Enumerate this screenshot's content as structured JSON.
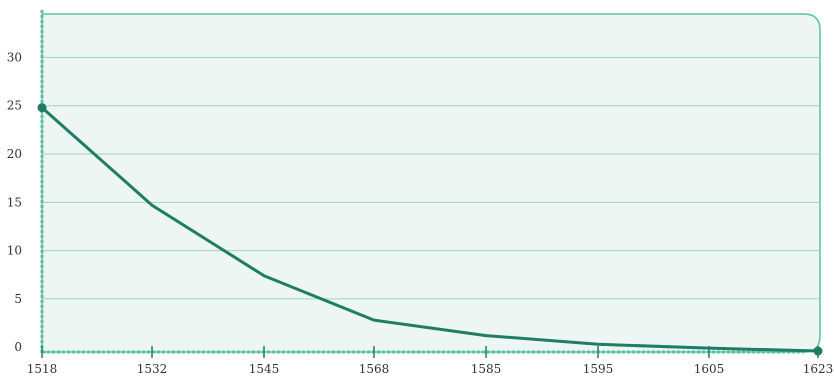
{
  "chart_data": {
    "type": "line",
    "title": "",
    "xlabel": "",
    "ylabel": "",
    "x": [
      "1518",
      "1532",
      "1545",
      "1568",
      "1585",
      "1595",
      "1605",
      "1623"
    ],
    "series": [
      {
        "values": [
          24.8,
          14.7,
          7.4,
          2.8,
          1.2,
          0.3,
          -0.1,
          -0.4
        ]
      }
    ],
    "yticks": [
      0,
      5,
      10,
      15,
      20,
      25,
      30
    ],
    "ylim": [
      -0.5,
      34.5
    ],
    "grid": true,
    "legend": "none",
    "colors": {
      "line": "#1e7d64",
      "plot_bg": "#eef6f3",
      "border": "#5cc0a8",
      "grid": "#9fd3c4",
      "marker": "#1e7d64"
    }
  }
}
